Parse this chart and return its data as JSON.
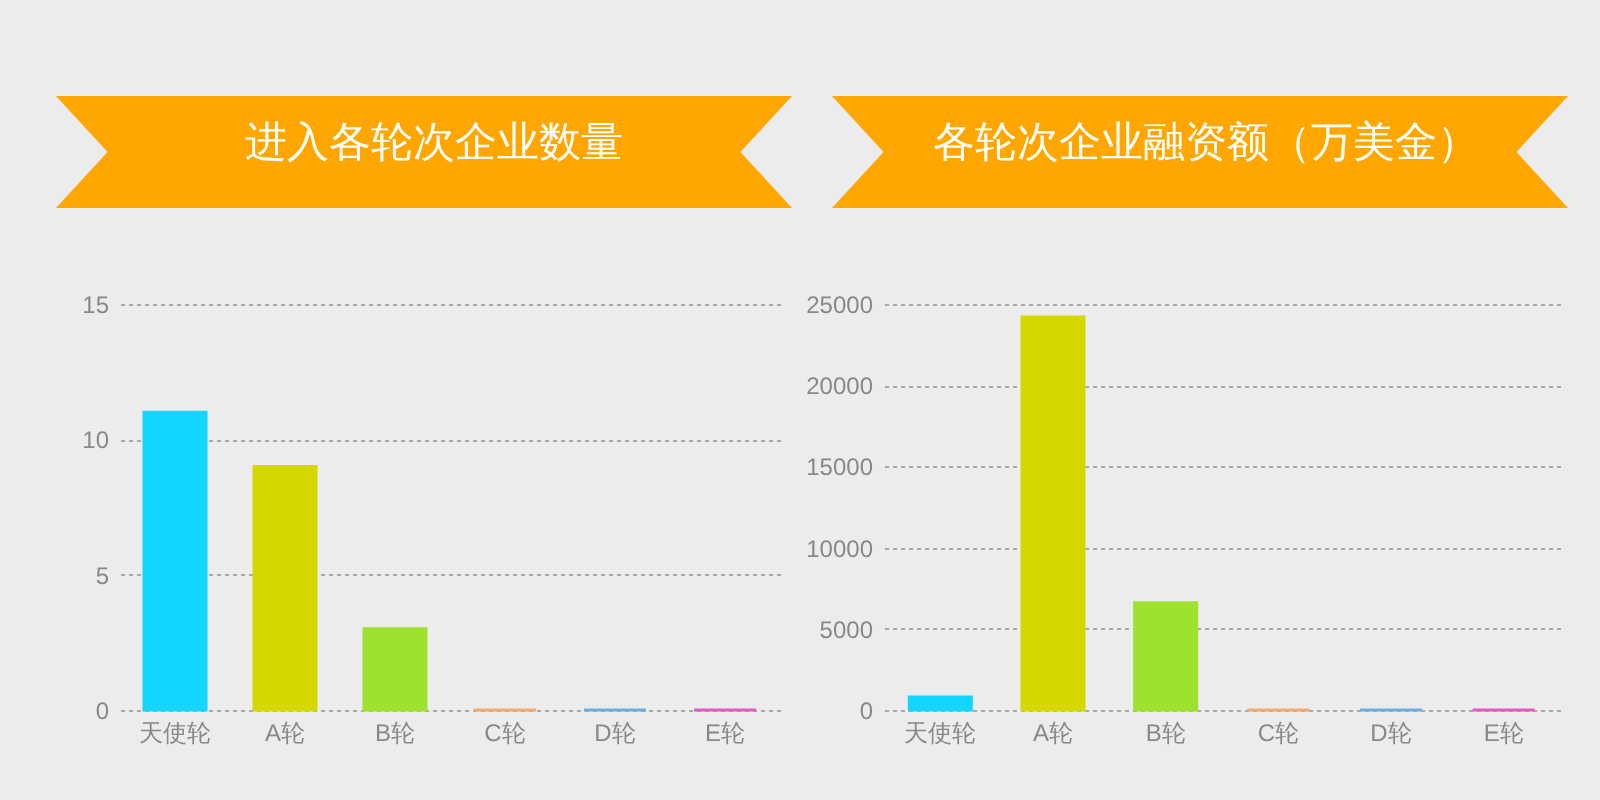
{
  "chart_data": [
    {
      "type": "bar",
      "title": "进入各轮次企业数量",
      "categories": [
        "天使轮",
        "A轮",
        "B轮",
        "C轮",
        "D轮",
        "E轮"
      ],
      "values": [
        11,
        9,
        3,
        0,
        0,
        0
      ],
      "colors": [
        "#12d6ff",
        "#d4d700",
        "#9de22e",
        "#f5a86b",
        "#6ab0de",
        "#e35bbf"
      ],
      "ylim": [
        0,
        15
      ],
      "yticks": [
        0,
        5,
        10,
        15
      ],
      "grid": "y"
    },
    {
      "type": "bar",
      "title": "各轮次企业融资额（万美金）",
      "categories": [
        "天使轮",
        "A轮",
        "B轮",
        "C轮",
        "D轮",
        "E轮"
      ],
      "values": [
        800,
        24200,
        6600,
        0,
        0,
        0
      ],
      "colors": [
        "#12d6ff",
        "#d4d700",
        "#9de22e",
        "#f5a86b",
        "#6ab0de",
        "#e35bbf"
      ],
      "ylim": [
        0,
        25000
      ],
      "yticks": [
        0,
        5000,
        10000,
        15000,
        20000,
        25000
      ],
      "grid": "y"
    }
  ]
}
